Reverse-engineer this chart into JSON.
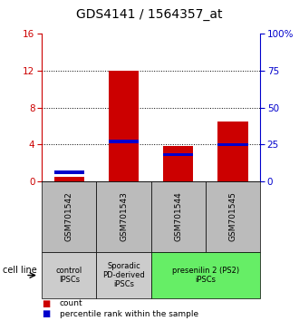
{
  "title": "GDS4141 / 1564357_at",
  "samples": [
    "GSM701542",
    "GSM701543",
    "GSM701544",
    "GSM701545"
  ],
  "red_values": [
    0.5,
    12.0,
    3.8,
    6.5
  ],
  "blue_values_pct": [
    6,
    27,
    18,
    25
  ],
  "ylim_left": [
    0,
    16
  ],
  "ylim_right": [
    0,
    100
  ],
  "yticks_left": [
    0,
    4,
    8,
    12,
    16
  ],
  "yticks_right": [
    0,
    25,
    50,
    75,
    100
  ],
  "ytick_labels_right": [
    "0",
    "25",
    "50",
    "75",
    "100%"
  ],
  "red_color": "#cc0000",
  "blue_color": "#0000cc",
  "bar_width": 0.55,
  "group_configs": [
    {
      "label": "control\nIPSCs",
      "color": "#cccccc",
      "start": 0,
      "end": 1
    },
    {
      "label": "Sporadic\nPD-derived\niPSCs",
      "color": "#cccccc",
      "start": 1,
      "end": 2
    },
    {
      "label": "presenilin 2 (PS2)\niPSCs",
      "color": "#66ee66",
      "start": 2,
      "end": 4
    }
  ],
  "sample_box_color": "#bbbbbb",
  "cell_line_label": "cell line",
  "legend_items": [
    "count",
    "percentile rank within the sample"
  ],
  "dotted_ytick_values": [
    4,
    8,
    12
  ],
  "title_fontsize": 10,
  "tick_fontsize": 7.5,
  "sample_fontsize": 6.5,
  "group_fontsize": 6,
  "legend_fontsize": 6.5,
  "cell_line_fontsize": 7
}
